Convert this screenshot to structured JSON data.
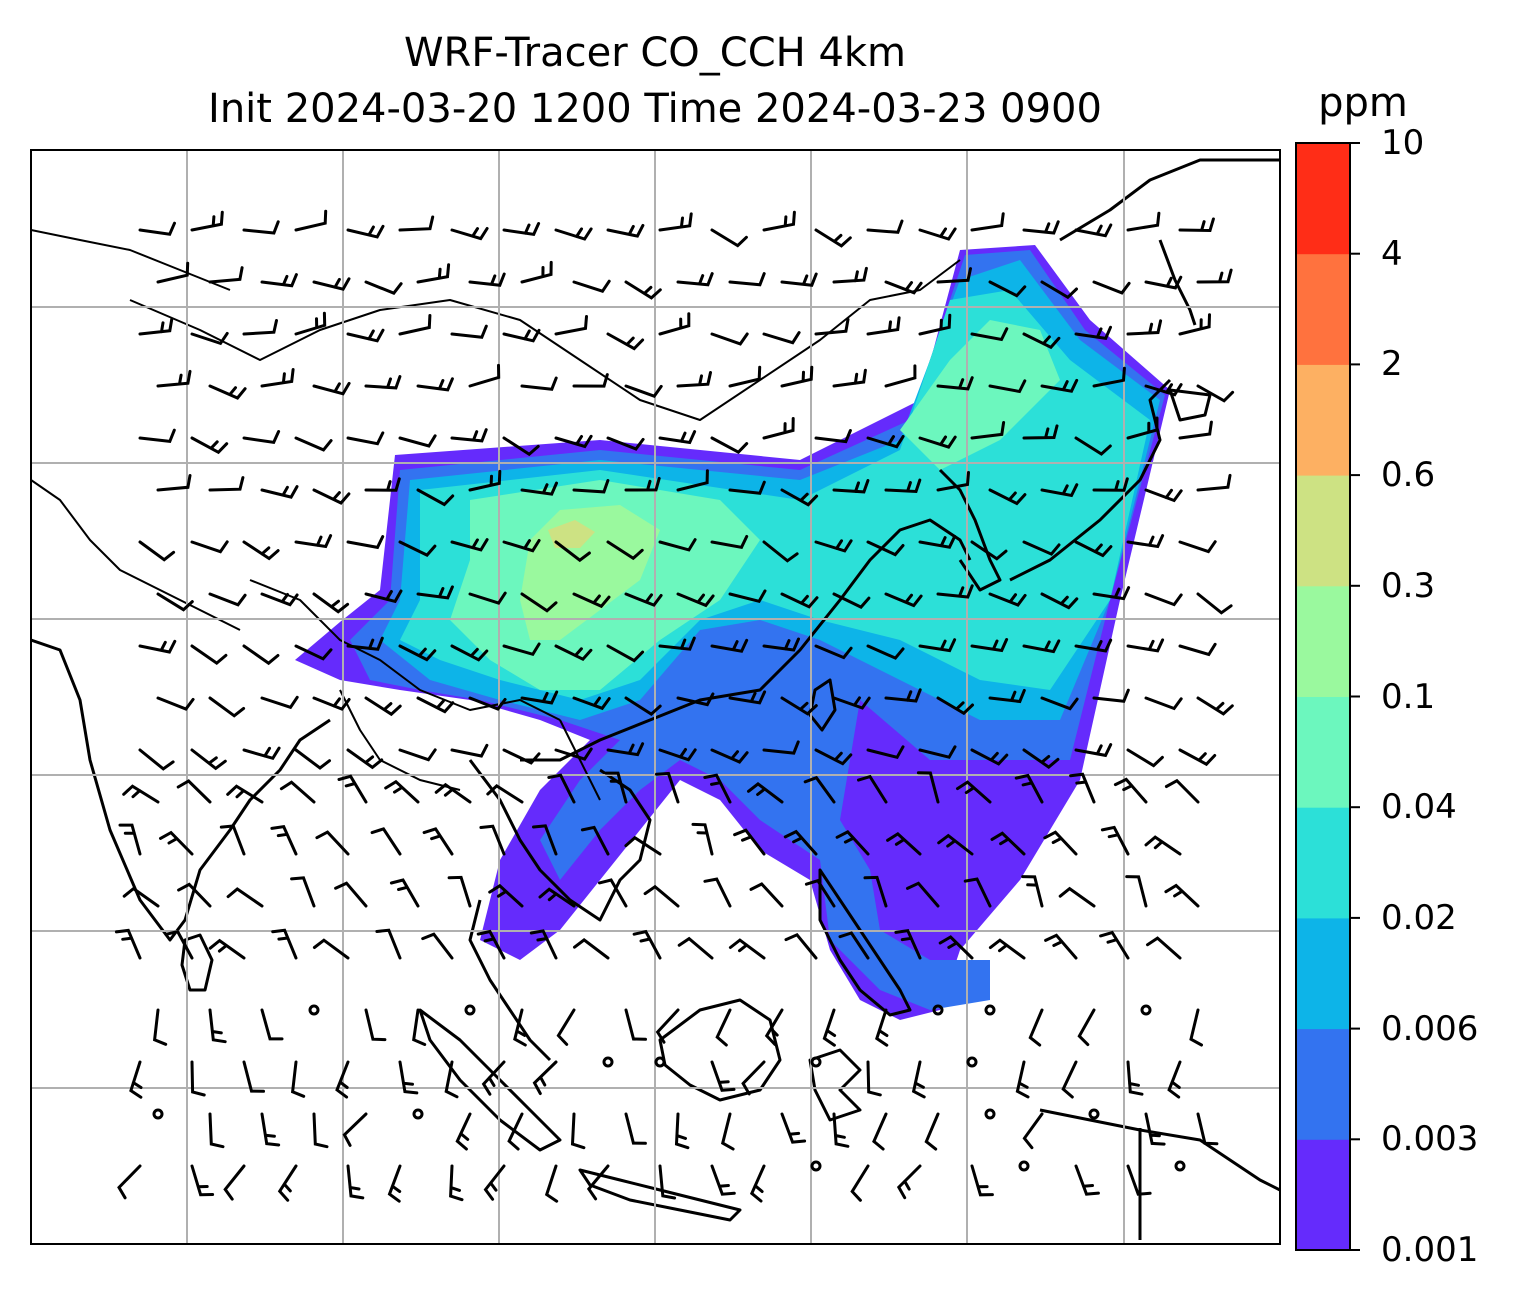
{
  "title": {
    "line1": "WRF-Tracer CO_CCH 4km",
    "line2": "Init 2024-03-20 1200 Time 2024-03-23 0900"
  },
  "colorbar": {
    "unit": "ppm",
    "levels": [
      {
        "label": "0.001",
        "color": "#652bfc"
      },
      {
        "label": "0.003",
        "color": "#3373f0"
      },
      {
        "label": "0.006",
        "color": "#0db4e8"
      },
      {
        "label": "0.02",
        "color": "#2ce0d8"
      },
      {
        "label": "0.04",
        "color": "#6cf7be"
      },
      {
        "label": "0.1",
        "color": "#9af99e"
      },
      {
        "label": "0.3",
        "color": "#cde283"
      },
      {
        "label": "0.6",
        "color": "#fdb062"
      },
      {
        "label": "2",
        "color": "#ff723e"
      },
      {
        "label": "4",
        "color": "#ff2d17"
      },
      {
        "label": "10",
        "color": null
      }
    ]
  },
  "map": {
    "coastline_color": "#000000",
    "gridline_color": "#b0b0b0",
    "wind_barb_color": "#000000",
    "calm_marker": "circle"
  }
}
